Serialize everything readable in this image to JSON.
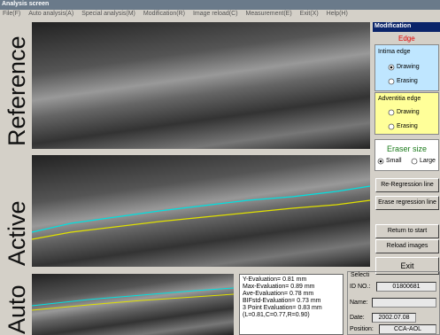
{
  "window": {
    "title": "Analysis screen"
  },
  "menu": [
    "File(F)",
    "Auto analysis(A)",
    "Special analysis(M)",
    "Modification(R)",
    "Image reload(C)",
    "Measurement(E)",
    "Exit(X)",
    "Help(H)"
  ],
  "panels": {
    "reference": "Reference",
    "active": "Active",
    "auto": "Auto"
  },
  "modification": {
    "title": "Modification",
    "edge": "Edge",
    "intima": {
      "title": "Intima edge",
      "drawing": "Drawing",
      "erasing": "Erasing"
    },
    "adventitia": {
      "title": "Adventitia edge",
      "drawing": "Drawing",
      "erasing": "Erasing"
    },
    "eraser": {
      "title": "Eraser size",
      "small": "Small",
      "large": "Large"
    },
    "buttons": [
      "Re-Regression line",
      "Erase regression line",
      "Return to start",
      "Reload images",
      "Exit"
    ]
  },
  "results": [
    "Y-Evaluation= 0.81  mm",
    "Max-Evaluation= 0.89  mm",
    "Ave-Evaluation= 0.78  mm",
    "BIFstd-Evaluation= 0.73  mm",
    "3 Point Evaluation= 0.83  mm",
    "(L=0.81,C=0.77,R=0.90)"
  ],
  "selection": {
    "title": "Selecti",
    "id_label": "ID NO.:",
    "id": "01800681",
    "name_label": "Name:",
    "date_label": "Date:",
    "date": "2002.07.08",
    "position_label": "Position:",
    "position": "CCA-AOL"
  }
}
